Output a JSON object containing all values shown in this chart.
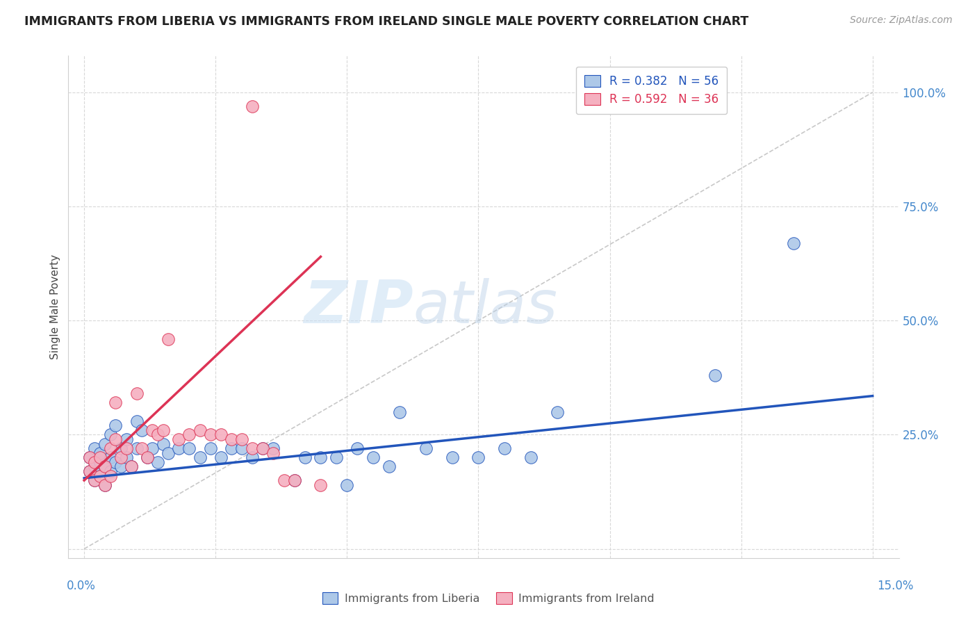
{
  "title": "IMMIGRANTS FROM LIBERIA VS IMMIGRANTS FROM IRELAND SINGLE MALE POVERTY CORRELATION CHART",
  "source": "Source: ZipAtlas.com",
  "ylabel": "Single Male Poverty",
  "xlim": [
    0.0,
    0.15
  ],
  "ylim": [
    0.0,
    1.05
  ],
  "liberia_color": "#adc8e8",
  "ireland_color": "#f5b0c0",
  "liberia_line_color": "#2255bb",
  "ireland_line_color": "#dd3355",
  "diagonal_color": "#c8c8c8",
  "watermark_zip": "ZIP",
  "watermark_atlas": "atlas",
  "legend_r1_text": "R = 0.382   N = 56",
  "legend_r2_text": "R = 0.592   N = 36",
  "liberia_x": [
    0.001,
    0.001,
    0.002,
    0.002,
    0.002,
    0.003,
    0.003,
    0.003,
    0.004,
    0.004,
    0.004,
    0.005,
    0.005,
    0.005,
    0.006,
    0.006,
    0.007,
    0.007,
    0.008,
    0.008,
    0.009,
    0.01,
    0.01,
    0.011,
    0.012,
    0.013,
    0.014,
    0.015,
    0.016,
    0.018,
    0.02,
    0.022,
    0.024,
    0.026,
    0.028,
    0.03,
    0.032,
    0.034,
    0.036,
    0.04,
    0.042,
    0.045,
    0.048,
    0.05,
    0.052,
    0.055,
    0.058,
    0.06,
    0.065,
    0.07,
    0.075,
    0.08,
    0.085,
    0.09,
    0.12,
    0.135
  ],
  "liberia_y": [
    0.17,
    0.2,
    0.15,
    0.18,
    0.22,
    0.16,
    0.19,
    0.21,
    0.14,
    0.18,
    0.23,
    0.17,
    0.2,
    0.25,
    0.19,
    0.27,
    0.18,
    0.22,
    0.2,
    0.24,
    0.18,
    0.28,
    0.22,
    0.26,
    0.2,
    0.22,
    0.19,
    0.23,
    0.21,
    0.22,
    0.22,
    0.2,
    0.22,
    0.2,
    0.22,
    0.22,
    0.2,
    0.22,
    0.22,
    0.15,
    0.2,
    0.2,
    0.2,
    0.14,
    0.22,
    0.2,
    0.18,
    0.3,
    0.22,
    0.2,
    0.2,
    0.22,
    0.2,
    0.3,
    0.38,
    0.67
  ],
  "ireland_x": [
    0.001,
    0.001,
    0.002,
    0.002,
    0.003,
    0.003,
    0.004,
    0.004,
    0.005,
    0.005,
    0.006,
    0.006,
    0.007,
    0.008,
    0.009,
    0.01,
    0.011,
    0.012,
    0.013,
    0.014,
    0.015,
    0.016,
    0.018,
    0.02,
    0.022,
    0.024,
    0.026,
    0.028,
    0.03,
    0.032,
    0.034,
    0.036,
    0.038,
    0.04,
    0.045,
    0.032
  ],
  "ireland_y": [
    0.17,
    0.2,
    0.15,
    0.19,
    0.16,
    0.2,
    0.14,
    0.18,
    0.16,
    0.22,
    0.24,
    0.32,
    0.2,
    0.22,
    0.18,
    0.34,
    0.22,
    0.2,
    0.26,
    0.25,
    0.26,
    0.46,
    0.24,
    0.25,
    0.26,
    0.25,
    0.25,
    0.24,
    0.24,
    0.22,
    0.22,
    0.21,
    0.15,
    0.15,
    0.14,
    0.97
  ],
  "liberia_line_x": [
    0.0,
    0.15
  ],
  "liberia_line_y": [
    0.155,
    0.335
  ],
  "ireland_line_x": [
    0.0,
    0.045
  ],
  "ireland_line_y": [
    0.15,
    0.64
  ]
}
